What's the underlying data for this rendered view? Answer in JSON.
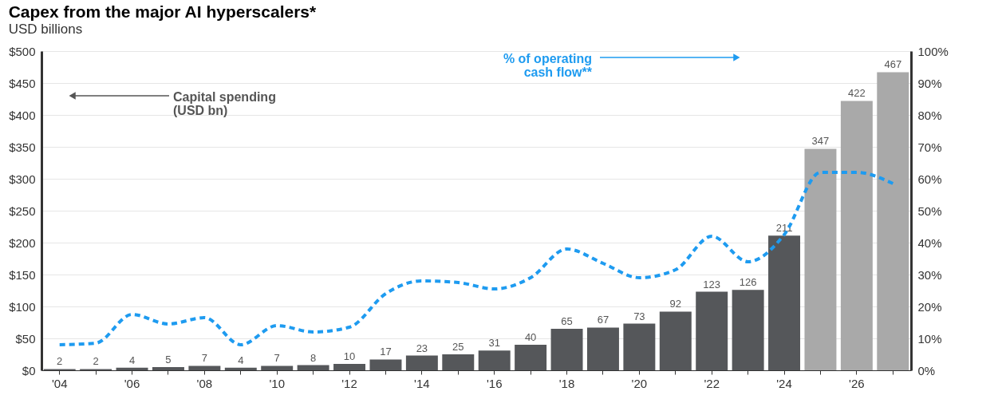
{
  "chart_data": {
    "type": "bar",
    "title": "Capex from the major AI hyperscalers*",
    "subtitle": "USD billions",
    "categories": [
      "'04",
      null,
      "'06",
      null,
      "'08",
      null,
      "'10",
      null,
      "'12",
      null,
      "'14",
      null,
      "'16",
      null,
      "'18",
      null,
      "'20",
      null,
      "'22",
      null,
      "'24",
      null,
      "'26",
      null
    ],
    "series": [
      {
        "colors": [
          "#55575a",
          "#55575a",
          "#55575a",
          "#55575a",
          "#55575a",
          "#55575a",
          "#55575a",
          "#55575a",
          "#55575a",
          "#55575a",
          "#55575a",
          "#55575a",
          "#55575a",
          "#55575a",
          "#55575a",
          "#55575a",
          "#55575a",
          "#55575a",
          "#55575a",
          "#55575a",
          "#55575a",
          "#a9a9a9",
          "#a9a9a9",
          "#a9a9a9"
        ],
        "values": [
          2,
          2,
          4,
          5,
          7,
          4,
          7,
          8,
          10,
          17,
          23,
          25,
          31,
          40,
          65,
          67,
          73,
          92,
          123,
          126,
          211,
          347,
          422,
          467
        ],
        "value_labels": [
          "2",
          "2",
          "4",
          "5",
          "7",
          "4",
          "7",
          "8",
          "10",
          "17",
          "23",
          "25",
          "31",
          "40",
          "65",
          "67",
          "73",
          "92",
          "123",
          "126",
          "211",
          "347",
          "422",
          "467"
        ]
      },
      {
        "type": "line",
        "axis": "y2",
        "color": "#1e9bf0",
        "line_style": "dashed",
        "values": [
          8,
          8.5,
          17.5,
          14.5,
          16.5,
          8,
          14,
          12,
          13.5,
          24,
          28,
          27.5,
          25.5,
          29,
          38,
          33.5,
          29,
          31.5,
          42,
          34,
          42.5,
          62,
          62,
          58.5
        ]
      }
    ],
    "ylim": [
      0,
      500
    ],
    "yticks": [
      {
        "value": 0,
        "label": "$0"
      },
      {
        "value": 50,
        "label": "$50"
      },
      {
        "value": 100,
        "label": "$100"
      },
      {
        "value": 150,
        "label": "$150"
      },
      {
        "value": 200,
        "label": "$200"
      },
      {
        "value": 250,
        "label": "$250"
      },
      {
        "value": 300,
        "label": "$300"
      },
      {
        "value": 350,
        "label": "$350"
      },
      {
        "value": 400,
        "label": "$400"
      },
      {
        "value": 450,
        "label": "$450"
      },
      {
        "value": 500,
        "label": "$500"
      }
    ],
    "y2lim": [
      0,
      100
    ],
    "y2ticks": [
      {
        "value": 0,
        "label": "0%"
      },
      {
        "value": 10,
        "label": "10%"
      },
      {
        "value": 20,
        "label": "20%"
      },
      {
        "value": 30,
        "label": "30%"
      },
      {
        "value": 40,
        "label": "40%"
      },
      {
        "value": 50,
        "label": "50%"
      },
      {
        "value": 60,
        "label": "60%"
      },
      {
        "value": 70,
        "label": "70%"
      },
      {
        "value": 80,
        "label": "80%"
      },
      {
        "value": 90,
        "label": "90%"
      },
      {
        "value": 100,
        "label": "100%"
      }
    ],
    "annotations": [
      "Capital spending\n(USD bn)",
      "% of operating\ncash flow**"
    ],
    "grid": "y",
    "legend": false,
    "marker": "none"
  }
}
